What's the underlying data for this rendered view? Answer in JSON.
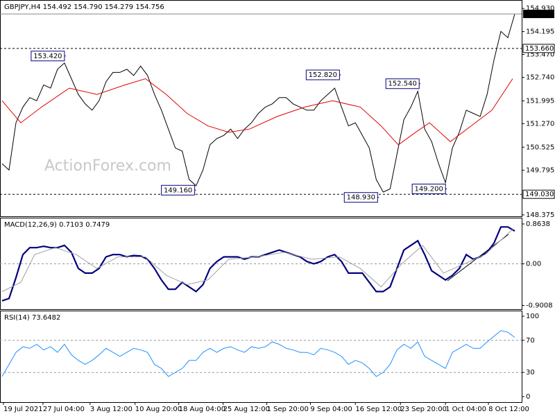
{
  "chart_data": [
    {
      "type": "line",
      "title": "GBPJPY,H4  154.492 154.790 154.279 154.756",
      "watermark": "ActionForex.com",
      "x": [
        0,
        1,
        2,
        3,
        4,
        5,
        6,
        7,
        8,
        9,
        10,
        11,
        12,
        13,
        14,
        15,
        16,
        17,
        18,
        19,
        20,
        21,
        22,
        23,
        24,
        25,
        26,
        27,
        28,
        29,
        30,
        31,
        32,
        33,
        34,
        35,
        36,
        37,
        38,
        39,
        40,
        41,
        42,
        43,
        44,
        45,
        46,
        47,
        48,
        49,
        50,
        51,
        52,
        53,
        54,
        55,
        56,
        57,
        58,
        59,
        60,
        61,
        62,
        63,
        64,
        65,
        66,
        67,
        68,
        69,
        70,
        71,
        72,
        73,
        74
      ],
      "xlim": [
        0,
        75
      ],
      "ylim": [
        148.33,
        155.11
      ],
      "yticks": [
        {
          "value": 154.93,
          "label": "154.930"
        },
        {
          "value": 154.195,
          "label": "154.195"
        },
        {
          "value": 153.47,
          "label": "153.470"
        },
        {
          "value": 152.74,
          "label": "152.740"
        },
        {
          "value": 151.995,
          "label": "151.995"
        },
        {
          "value": 151.27,
          "label": "151.270"
        },
        {
          "value": 150.525,
          "label": "150.525"
        },
        {
          "value": 149.795,
          "label": "149.795"
        },
        {
          "value": 148.375,
          "label": "148.375"
        }
      ],
      "series": [
        {
          "color": "#000000",
          "values": [
            150.0,
            149.8,
            151.3,
            151.8,
            152.1,
            152.0,
            152.5,
            152.4,
            153.0,
            153.2,
            152.7,
            152.2,
            151.9,
            151.7,
            152.0,
            152.6,
            152.9,
            152.9,
            153.0,
            152.8,
            153.1,
            152.8,
            152.2,
            151.7,
            151.1,
            150.5,
            150.4,
            149.5,
            149.3,
            149.8,
            150.6,
            150.8,
            150.9,
            151.1,
            150.8,
            151.1,
            151.3,
            151.6,
            151.8,
            151.9,
            152.1,
            152.1,
            151.9,
            151.8,
            151.7,
            151.7,
            152.0,
            152.2,
            152.4,
            151.8,
            151.2,
            151.3,
            150.9,
            150.5,
            149.5,
            149.1,
            149.2,
            150.3,
            151.4,
            151.8,
            152.3,
            151.1,
            150.7,
            150.0,
            149.4,
            150.5,
            151.0,
            151.7,
            151.6,
            151.5,
            152.2,
            153.3,
            154.2,
            154.0,
            154.756
          ]
        },
        {
          "color": "#e00000",
          "x": [
            0,
            2.7,
            5.7,
            9.7,
            13.7,
            17.7,
            20.7,
            23.7,
            26.7,
            29.7,
            32.7,
            35.7,
            39.7,
            43.7,
            47.7,
            51.7,
            54.7,
            57.2,
            59.7,
            61.7,
            64.7,
            67.7,
            70.7,
            73.7
          ],
          "values": [
            152.0,
            151.3,
            151.8,
            152.4,
            152.2,
            152.5,
            152.7,
            152.2,
            151.6,
            151.2,
            151.0,
            151.1,
            151.5,
            151.8,
            152.0,
            151.8,
            151.2,
            150.6,
            151.0,
            151.3,
            150.7,
            151.2,
            151.7,
            152.7
          ]
        }
      ],
      "levels": [
        {
          "value": 153.66,
          "label": "153.660"
        },
        {
          "value": 149.03,
          "label": "149.030"
        }
      ],
      "last": {
        "value": 154.756,
        "label": "154.756"
      },
      "annotations": [
        {
          "x": 9.2,
          "value": 153.42,
          "label": "153.420"
        },
        {
          "x": 48.9,
          "value": 152.82,
          "label": "152.820"
        },
        {
          "x": 60.4,
          "value": 152.54,
          "label": "152.540"
        },
        {
          "x": 28,
          "value": 149.16,
          "label": "149.160"
        },
        {
          "x": 54.4,
          "value": 148.93,
          "label": "148.930"
        },
        {
          "x": 64.2,
          "value": 149.2,
          "label": "149.200"
        }
      ]
    },
    {
      "type": "line",
      "title": "MACD(12,26,9) 0.7103 0.7479",
      "x": [
        0,
        1,
        2,
        3,
        4,
        5,
        6,
        7,
        8,
        9,
        10,
        11,
        12,
        13,
        14,
        15,
        16,
        17,
        18,
        19,
        20,
        21,
        22,
        23,
        24,
        25,
        26,
        27,
        28,
        29,
        30,
        31,
        32,
        33,
        34,
        35,
        36,
        37,
        38,
        39,
        40,
        41,
        42,
        43,
        44,
        45,
        46,
        47,
        48,
        49,
        50,
        51,
        52,
        53,
        54,
        55,
        56,
        57,
        58,
        59,
        60,
        61,
        62,
        63,
        64,
        65,
        66,
        67,
        68,
        69,
        70,
        71,
        72,
        73,
        74
      ],
      "xlim": [
        0,
        75
      ],
      "ylim": [
        -0.983,
        0.969
      ],
      "yticks": [
        0.8638,
        {
          "value": 0,
          "label": "0.00"
        },
        -0.9008
      ],
      "levels": [
        0
      ],
      "series": [
        {
          "color": "#00007f",
          "width": 2.2,
          "values": [
            -0.8,
            -0.75,
            -0.3,
            0.2,
            0.35,
            0.35,
            0.38,
            0.35,
            0.35,
            0.4,
            0.25,
            -0.1,
            -0.2,
            -0.2,
            -0.1,
            0.15,
            0.2,
            0.2,
            0.15,
            0.18,
            0.17,
            0.1,
            -0.1,
            -0.35,
            -0.55,
            -0.55,
            -0.4,
            -0.5,
            -0.6,
            -0.45,
            -0.1,
            0.05,
            0.15,
            0.15,
            0.15,
            0.1,
            0.15,
            0.15,
            0.2,
            0.25,
            0.3,
            0.25,
            0.2,
            0.15,
            0.05,
            0.0,
            0.05,
            0.15,
            0.2,
            0.05,
            -0.2,
            -0.2,
            -0.2,
            -0.4,
            -0.6,
            -0.6,
            -0.5,
            -0.1,
            0.3,
            0.4,
            0.5,
            0.2,
            -0.15,
            -0.25,
            -0.35,
            -0.25,
            -0.1,
            0.2,
            0.1,
            0.15,
            0.25,
            0.45,
            0.8,
            0.8,
            0.7103
          ]
        },
        {
          "color": "#a0a0a0",
          "width": 1,
          "x": [
            0,
            2.7,
            4.7,
            7.7,
            10.7,
            13.7,
            16.7,
            20.7,
            23.7,
            26.7,
            29.7,
            32.7,
            36.7,
            40.7,
            44.7,
            48.7,
            51.7,
            54.7,
            57.7,
            60.7,
            63.7,
            66.7,
            69.7,
            73.7
          ],
          "values": [
            -0.6,
            -0.4,
            0.2,
            0.35,
            0.2,
            -0.1,
            0.15,
            0.15,
            -0.25,
            -0.45,
            -0.35,
            0.1,
            0.15,
            0.25,
            0.1,
            0.15,
            -0.1,
            -0.5,
            0.0,
            0.4,
            -0.2,
            0.0,
            0.2,
            0.7479
          ]
        }
      ]
    },
    {
      "type": "line",
      "title": "RSI(14) 73.6482",
      "x": [
        0,
        1,
        2,
        3,
        4,
        5,
        6,
        7,
        8,
        9,
        10,
        11,
        12,
        13,
        14,
        15,
        16,
        17,
        18,
        19,
        20,
        21,
        22,
        23,
        24,
        25,
        26,
        27,
        28,
        29,
        30,
        31,
        32,
        33,
        34,
        35,
        36,
        37,
        38,
        39,
        40,
        41,
        42,
        43,
        44,
        45,
        46,
        47,
        48,
        49,
        50,
        51,
        52,
        53,
        54,
        55,
        56,
        57,
        58,
        59,
        60,
        61,
        62,
        63,
        64,
        65,
        66,
        67,
        68,
        69,
        70,
        71,
        72,
        73,
        74
      ],
      "xlim": [
        0,
        75
      ],
      "ylim": [
        -6.9,
        105.2
      ],
      "yticks": [
        100,
        70,
        30,
        0
      ],
      "levels": [
        70,
        30
      ],
      "xticks": [
        {
          "value": 0.2,
          "label": "19 Jul 2021"
        },
        {
          "value": 5.9,
          "label": "27 Jul 04:00"
        },
        {
          "value": 12.7,
          "label": "3 Aug 12:00"
        },
        {
          "value": 19.2,
          "label": "10 Aug 20:00"
        },
        {
          "value": 25.5,
          "label": "18 Aug 04:00"
        },
        {
          "value": 31.9,
          "label": "25 Aug 12:00"
        },
        {
          "value": 38.2,
          "label": "1 Sep 20:00"
        },
        {
          "value": 44.5,
          "label": "9 Sep 04:00"
        },
        {
          "value": 51,
          "label": "16 Sep 12:00"
        },
        {
          "value": 57.5,
          "label": "23 Sep 20:00"
        },
        {
          "value": 64,
          "label": "1 Oct 04:00"
        },
        {
          "value": 70.2,
          "label": "8 Oct 12:00"
        }
      ],
      "series": [
        {
          "color": "#1e90ff",
          "width": 1,
          "values": [
            25,
            40,
            55,
            62,
            60,
            65,
            58,
            62,
            55,
            65,
            52,
            45,
            40,
            45,
            52,
            60,
            55,
            50,
            55,
            60,
            58,
            55,
            40,
            35,
            25,
            30,
            35,
            45,
            45,
            55,
            60,
            55,
            60,
            62,
            58,
            55,
            62,
            60,
            62,
            68,
            65,
            60,
            58,
            55,
            55,
            52,
            60,
            58,
            55,
            50,
            40,
            45,
            42,
            35,
            25,
            30,
            40,
            58,
            65,
            60,
            68,
            50,
            45,
            40,
            35,
            55,
            60,
            65,
            60,
            60,
            68,
            75,
            82,
            80,
            73.6482
          ]
        }
      ]
    }
  ]
}
